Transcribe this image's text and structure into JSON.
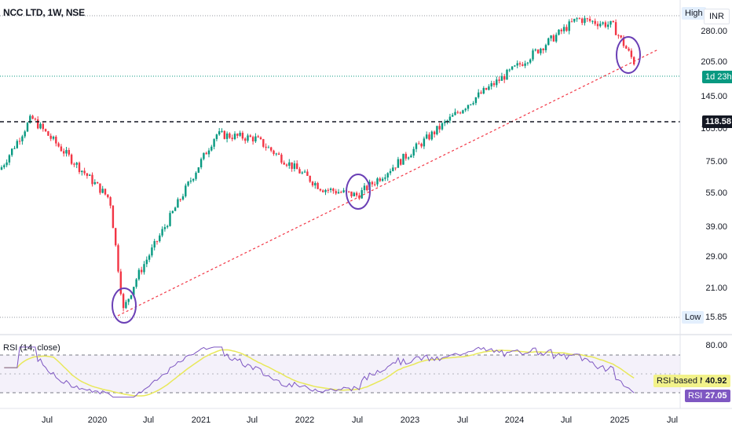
{
  "header": {
    "title": "NCC LTD, 1W, NSE"
  },
  "scale": {
    "currency": "INR",
    "high_label": "High",
    "low_label": "Low",
    "low_value": "15.85",
    "price_ticks": [
      "280.00",
      "205.00",
      "145.00",
      "105.00",
      "75.00",
      "55.00",
      "39.00",
      "29.00",
      "21.00"
    ],
    "price_tick_values": [
      280,
      205,
      145,
      105,
      75,
      55,
      39,
      29,
      21
    ],
    "current_countdown": "1d 23h",
    "level_value": "118.58",
    "level_price": 118.58
  },
  "rsi_panel": {
    "title": "RSI (14, close)",
    "upper_tick": "80.00",
    "ma_label": "RSI-based MA",
    "ma_value": "40.92",
    "rsi_label": "RSI",
    "rsi_value": "27.05"
  },
  "time_axis": {
    "labels": [
      "Jul",
      "2020",
      "Jul",
      "2021",
      "Jul",
      "2022",
      "Jul",
      "2023",
      "Jul",
      "2024",
      "Jul",
      "2025",
      "Jul"
    ]
  },
  "colors": {
    "up": "#089981",
    "down": "#f23645",
    "rsi_line": "#7e57c2",
    "rsi_ma": "#e8e85a",
    "circle": "#6a3fb5",
    "trend": "#f23645",
    "countdown_bg": "#089981",
    "level_bg": "#131722"
  },
  "chart_data": {
    "type": "candlestick",
    "title": "NCC LTD, 1W, NSE",
    "y_scale": "log",
    "ylim": [
      15,
      330
    ],
    "low": 15.85,
    "x": [
      "2019-07",
      "2020-01",
      "2020-03",
      "2020-07",
      "2021-01",
      "2021-07",
      "2022-01",
      "2022-07",
      "2023-01",
      "2023-07",
      "2024-01",
      "2024-07",
      "2025-01"
    ],
    "close": [
      60,
      55,
      17,
      33,
      84,
      85,
      78,
      58,
      88,
      150,
      230,
      320,
      205
    ],
    "rsi": {
      "period": 14,
      "last": 27.05,
      "ma_last": 40.92
    }
  }
}
